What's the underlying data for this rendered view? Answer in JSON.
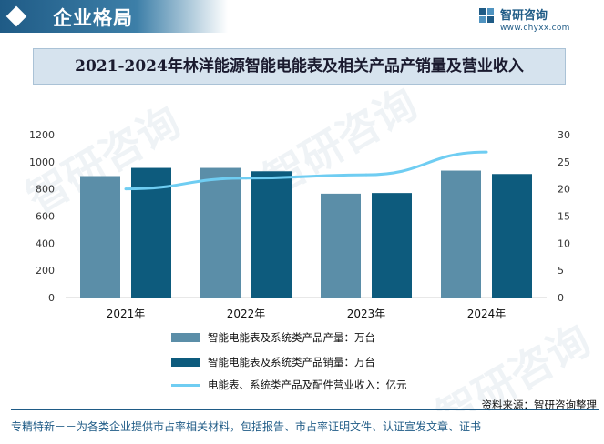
{
  "header": {
    "section_title": "企业格局",
    "logo_name": "智研咨询",
    "logo_url": "www.chyxx.com"
  },
  "title": "2021-2024年林洋能源智能电能表及相关产品产销量及营业收入",
  "chart_data": {
    "type": "bar",
    "categories": [
      "2021年",
      "2022年",
      "2023年",
      "2024年"
    ],
    "series": [
      {
        "name": "智能电能表及系统类产品产量：万台",
        "kind": "bar",
        "axis": "left",
        "color": "#5b8ea8",
        "values": [
          895,
          955,
          765,
          935
        ]
      },
      {
        "name": "智能电能表及系统类产品销量：万台",
        "kind": "bar",
        "axis": "left",
        "color": "#0d5b7d",
        "values": [
          955,
          930,
          770,
          910
        ]
      },
      {
        "name": "电能表、系统类产品及配件营业收入：亿元",
        "kind": "line",
        "axis": "right",
        "color": "#6fcdf2",
        "values": [
          20.0,
          22.0,
          22.6,
          26.8
        ]
      }
    ],
    "y_left": {
      "ylim": [
        0,
        1200
      ],
      "ticks": [
        "0",
        "200",
        "400",
        "600",
        "800",
        "1000",
        "1200"
      ]
    },
    "y_right": {
      "ylim": [
        0,
        30
      ],
      "ticks": [
        "0",
        "5",
        "10",
        "15",
        "20",
        "25",
        "30"
      ]
    },
    "grid": false,
    "legend": "bottom"
  },
  "source": "资料来源：智研咨询整理",
  "footer": "专精特新－－为各类企业提供市占率相关材料，包括报告、市占率证明文件、认证宣发文章、证书",
  "watermark": "智研咨询",
  "colors": {
    "brand": "#1f5b86",
    "title_bg": "#d6e3ee"
  }
}
